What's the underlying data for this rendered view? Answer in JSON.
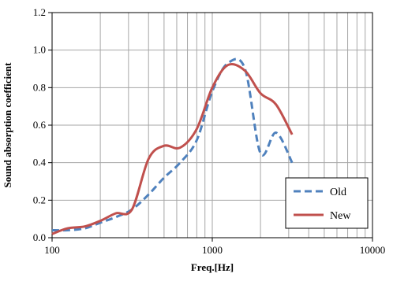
{
  "chart_data": {
    "type": "line",
    "xlabel": "Freq.[Hz]",
    "ylabel": "Sound absorption coefficient",
    "x_scale": "log",
    "xlim": [
      100,
      10000
    ],
    "ylim": [
      0.0,
      1.2
    ],
    "x_ticks": [
      "100",
      "1000",
      "10000"
    ],
    "y_ticks": [
      "0.0",
      "0.2",
      "0.4",
      "0.6",
      "0.8",
      "1.0",
      "1.2"
    ],
    "grid": true,
    "legend_position": "bottom-right",
    "series": [
      {
        "name": "Old",
        "color": "#4f81bd",
        "dash": "dashed",
        "x": [
          100,
          125,
          160,
          200,
          250,
          315,
          400,
          500,
          630,
          800,
          1000,
          1250,
          1600,
          2000,
          2500,
          3150
        ],
        "y": [
          0.04,
          0.04,
          0.05,
          0.08,
          0.11,
          0.15,
          0.23,
          0.32,
          0.4,
          0.52,
          0.78,
          0.93,
          0.9,
          0.45,
          0.56,
          0.4
        ]
      },
      {
        "name": "New",
        "color": "#c0504d",
        "dash": "solid",
        "x": [
          100,
          125,
          160,
          200,
          250,
          315,
          400,
          500,
          630,
          800,
          1000,
          1250,
          1600,
          2000,
          2500,
          3150
        ],
        "y": [
          0.02,
          0.05,
          0.06,
          0.09,
          0.13,
          0.15,
          0.42,
          0.49,
          0.48,
          0.58,
          0.8,
          0.92,
          0.89,
          0.77,
          0.71,
          0.55
        ]
      }
    ]
  }
}
